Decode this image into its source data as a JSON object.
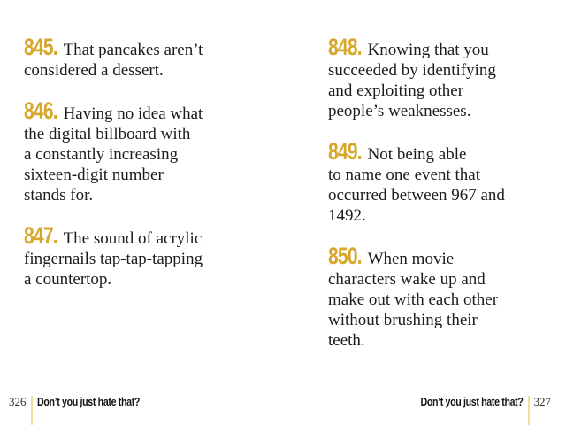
{
  "left": {
    "items": [
      {
        "number": "845.",
        "text": "That pancakes aren’t\nconsidered a dessert."
      },
      {
        "number": "846.",
        "text": "Having no idea what\nthe digital billboard with\na constantly increasing\nsixteen-digit number\nstands for."
      },
      {
        "number": "847.",
        "text": "The sound of acrylic\nfingernails tap-tap-tapping\na countertop."
      }
    ],
    "footer": {
      "page_number": "326",
      "title": "Don’t you just hate that?"
    }
  },
  "right": {
    "items": [
      {
        "number": "848.",
        "text": "Knowing that you\nsucceeded by identifying\nand exploiting other\npeople’s weaknesses."
      },
      {
        "number": "849.",
        "text": "Not being able\nto name one event that\noccurred between 967 and\n1492."
      },
      {
        "number": "850.",
        "text": "When movie\ncharacters wake up and\nmake out with each other\nwithout brushing their\nteeth."
      }
    ],
    "footer": {
      "page_number": "327",
      "title": "Don’t you just hate that?"
    }
  },
  "colors": {
    "accent_gold": "#d6a72b",
    "footer_rule": "#ece0a0",
    "body_text": "#1c1c1c"
  }
}
